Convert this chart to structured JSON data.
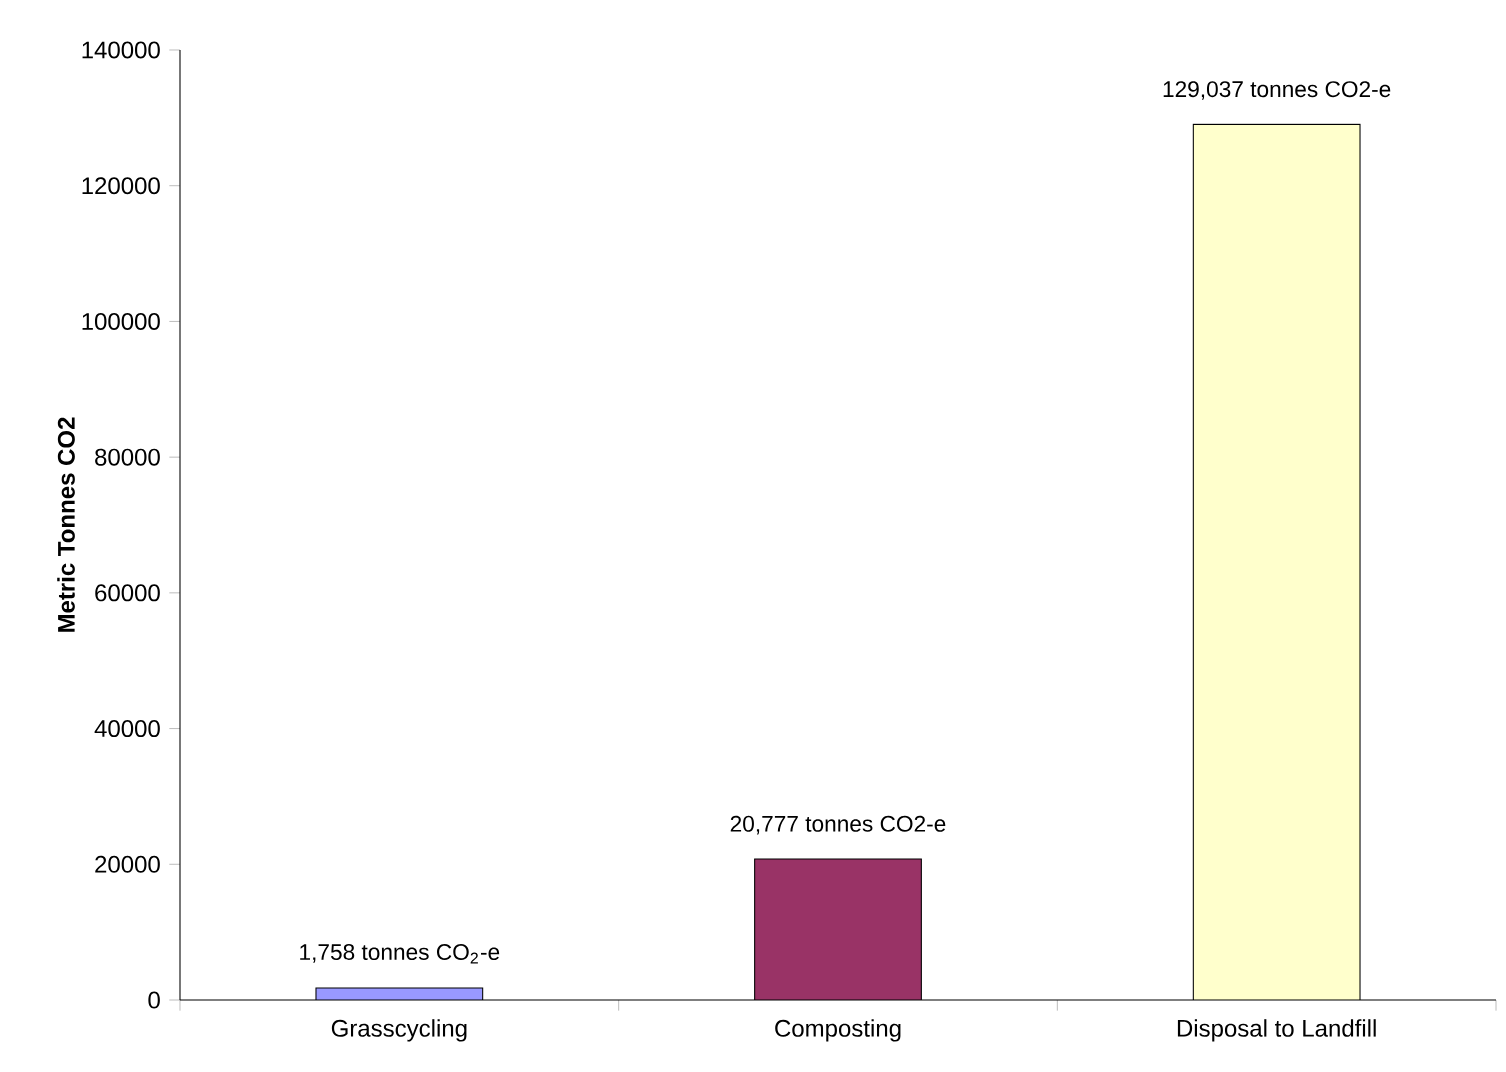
{
  "chart_data": {
    "type": "bar",
    "ylabel": "Metric Tonnes CO2",
    "categories": [
      "Grasscycling",
      "Composting",
      "Disposal to Landfill"
    ],
    "values": [
      1758,
      20777,
      129037
    ],
    "colors": [
      "#9999ff",
      "#993366",
      "#ffffcc"
    ],
    "value_labels": [
      "1,758 tonnes CO$_{2}$-e",
      "20,777 tonnes CO2-e",
      "129,037 tonnes CO2-e"
    ],
    "ylim": [
      0,
      140000
    ],
    "yticks": [
      0,
      20000,
      40000,
      60000,
      80000,
      100000,
      120000,
      140000
    ],
    "grid": false
  }
}
